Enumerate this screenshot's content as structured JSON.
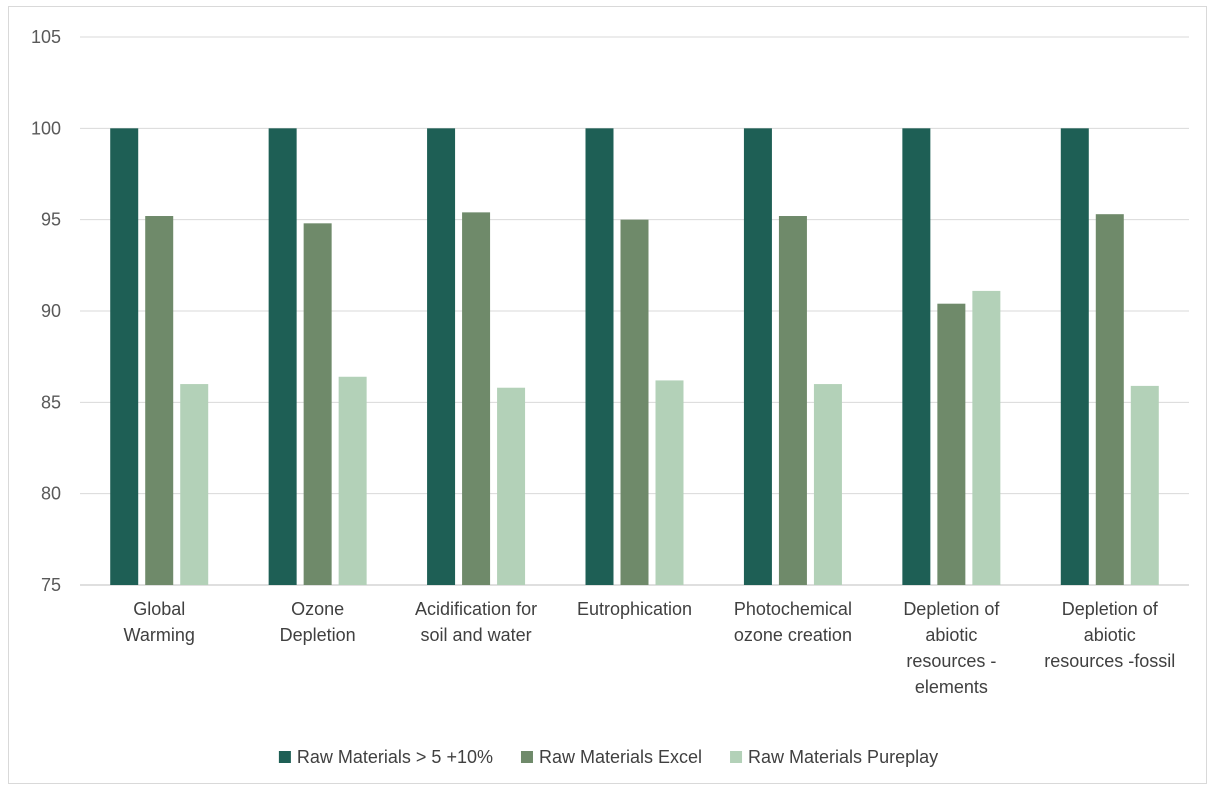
{
  "chart_data": {
    "type": "bar",
    "categories": [
      [
        "Global",
        "Warming"
      ],
      [
        "Ozone",
        "Depletion"
      ],
      [
        "Acidification for",
        "soil and water"
      ],
      [
        "Eutrophication"
      ],
      [
        "Photochemical",
        "ozone creation"
      ],
      [
        "Depletion of",
        "abiotic",
        "resources -",
        "elements"
      ],
      [
        "Depletion of",
        "abiotic",
        "resources -fossil"
      ]
    ],
    "series": [
      {
        "name": "Raw Materials > 5 +10%",
        "color": "#1e5f55",
        "values": [
          100,
          100,
          100,
          100,
          100,
          100,
          100
        ]
      },
      {
        "name": "Raw Materials Excel",
        "color": "#6f8a6a",
        "values": [
          95.2,
          94.8,
          95.4,
          95.0,
          95.2,
          90.4,
          95.3
        ]
      },
      {
        "name": "Raw Materials Pureplay",
        "color": "#b3d1b8",
        "values": [
          86.0,
          86.4,
          85.8,
          86.2,
          86.0,
          91.1,
          85.9
        ]
      }
    ],
    "ylim": [
      75,
      105
    ],
    "yticks": [
      75,
      80,
      85,
      90,
      95,
      100,
      105
    ],
    "grid": true,
    "legend_position": "bottom"
  }
}
